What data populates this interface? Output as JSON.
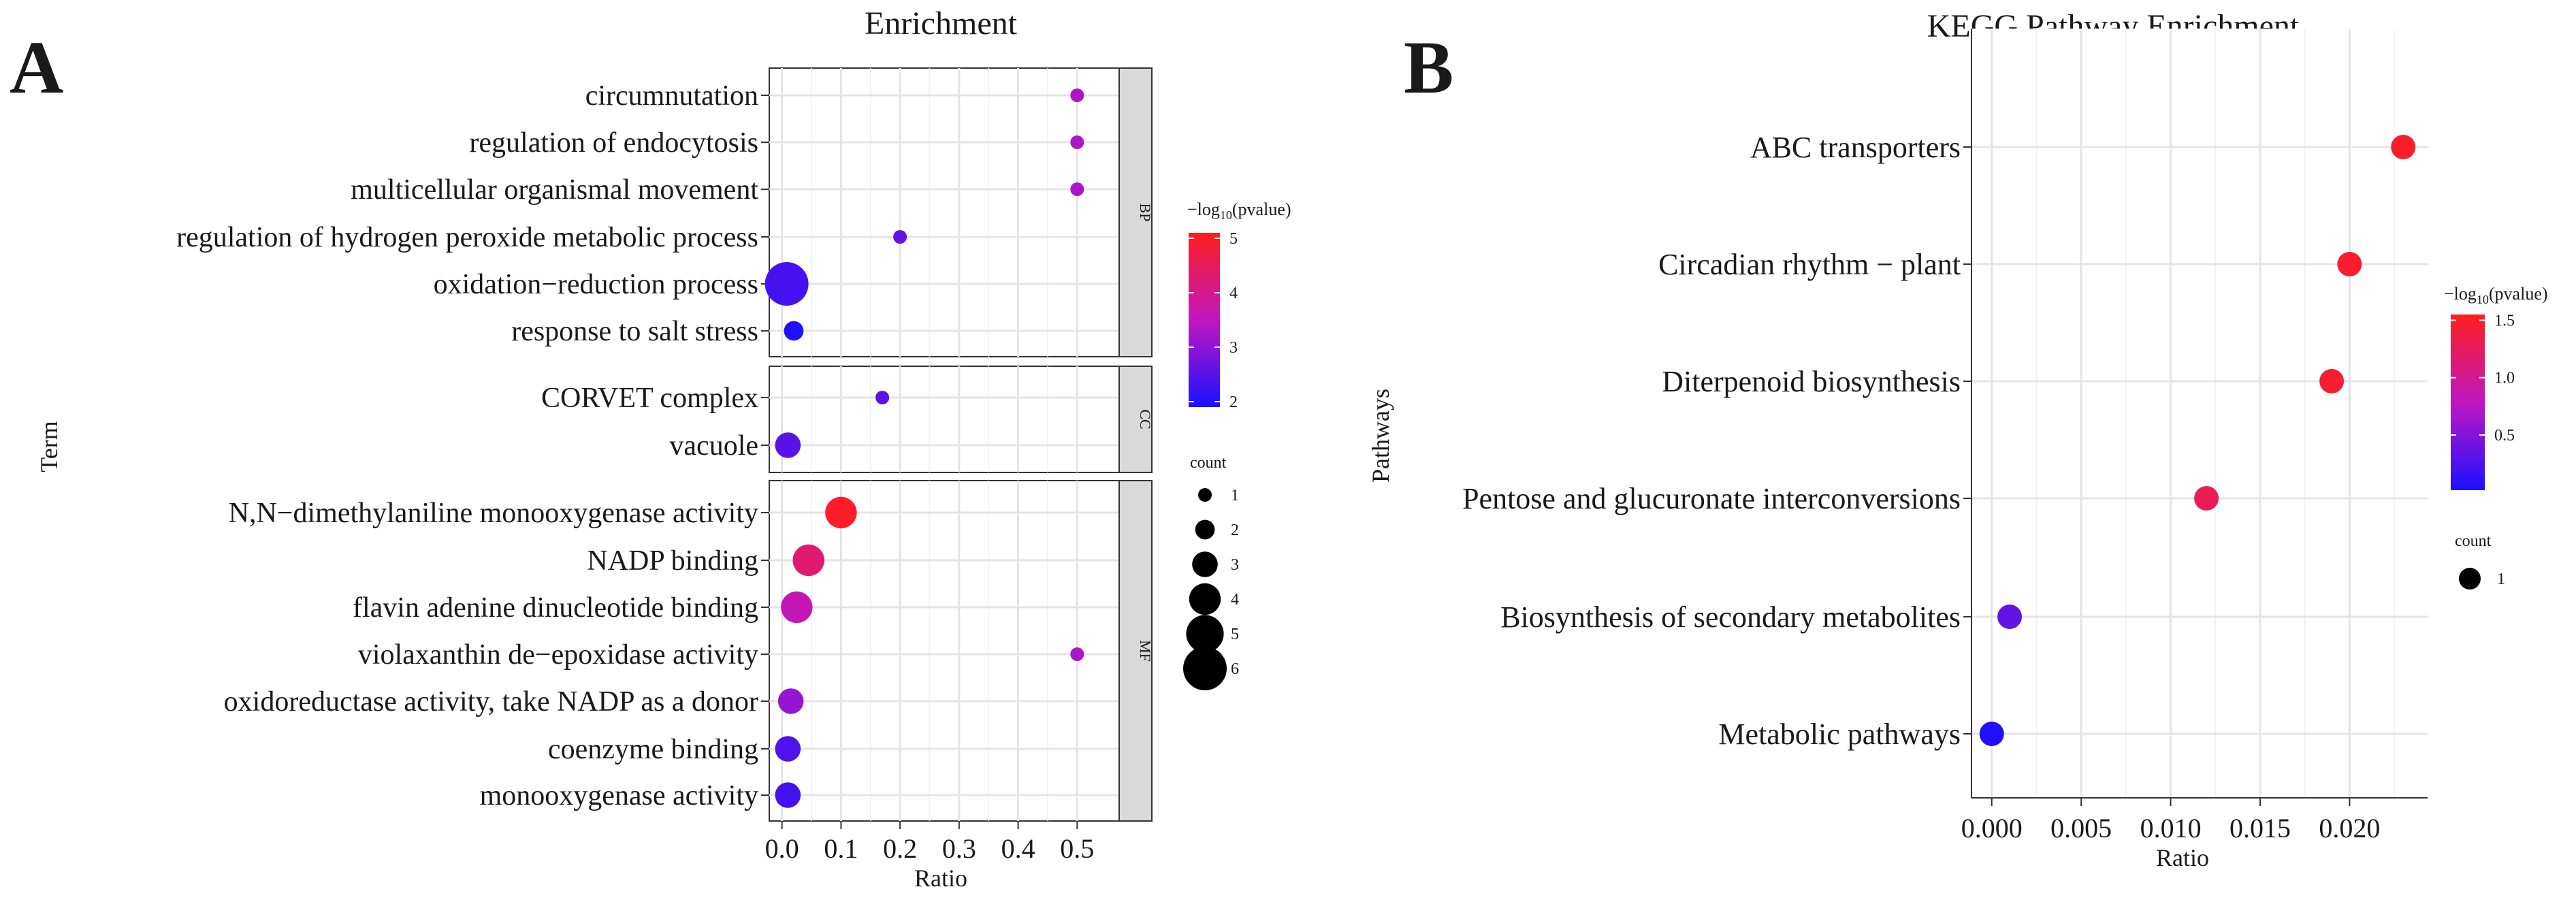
{
  "chart_data": [
    {
      "panel_label": "A",
      "type": "scatter",
      "title": "Enrichment",
      "xlabel": "Ratio",
      "ylabel": "Term",
      "xlim": [
        -0.01,
        0.54
      ],
      "x_ticks": [
        "0.0",
        "0.1",
        "0.2",
        "0.3",
        "0.4",
        "0.5"
      ],
      "x_tick_values": [
        0.0,
        0.1,
        0.2,
        0.3,
        0.4,
        0.5
      ],
      "color_legend": {
        "title_prefix": "−log",
        "title_sub": "10",
        "title_suffix": "(pvalue)",
        "range": [
          1.9,
          5.1
        ],
        "ticks": [
          "5",
          "4",
          "3",
          "2"
        ],
        "tick_values": [
          5,
          4,
          3,
          2
        ],
        "low_color": "#1a10ff",
        "mid_color": "#c117c0",
        "high_color": "#ff1e1e"
      },
      "size_legend": {
        "title": "count",
        "labels": [
          "1",
          "2",
          "3",
          "4",
          "5",
          "6"
        ],
        "values": [
          1,
          2,
          3,
          4,
          5,
          6
        ]
      },
      "facets": [
        {
          "label": "BP",
          "terms": [
            {
              "term": "circumnutation",
              "ratio": 0.5,
              "neglog10p": 3.3,
              "count": 1
            },
            {
              "term": "regulation of endocytosis",
              "ratio": 0.5,
              "neglog10p": 3.3,
              "count": 1
            },
            {
              "term": "multicellular organismal movement",
              "ratio": 0.5,
              "neglog10p": 3.3,
              "count": 1
            },
            {
              "term": "regulation of hydrogen peroxide metabolic process",
              "ratio": 0.2,
              "neglog10p": 2.6,
              "count": 1
            },
            {
              "term": "oxidation−reduction process",
              "ratio": 0.008,
              "neglog10p": 2.3,
              "count": 6
            },
            {
              "term": "response to salt stress",
              "ratio": 0.02,
              "neglog10p": 1.95,
              "count": 2
            }
          ]
        },
        {
          "label": "CC",
          "terms": [
            {
              "term": "CORVET complex",
              "ratio": 0.17,
              "neglog10p": 2.5,
              "count": 1
            },
            {
              "term": "vacuole",
              "ratio": 0.01,
              "neglog10p": 2.5,
              "count": 3
            }
          ]
        },
        {
          "label": "MF",
          "terms": [
            {
              "term": "N,N−dimethylaniline monooxygenase activity",
              "ratio": 0.1,
              "neglog10p": 5.0,
              "count": 4
            },
            {
              "term": "NADP binding",
              "ratio": 0.045,
              "neglog10p": 4.3,
              "count": 4
            },
            {
              "term": "flavin adenine dinucleotide binding",
              "ratio": 0.025,
              "neglog10p": 3.6,
              "count": 4
            },
            {
              "term": "violaxanthin de−epoxidase activity",
              "ratio": 0.5,
              "neglog10p": 3.3,
              "count": 1
            },
            {
              "term": "oxidoreductase activity, take NADP as a donor",
              "ratio": 0.015,
              "neglog10p": 3.1,
              "count": 3
            },
            {
              "term": "coenzyme binding",
              "ratio": 0.01,
              "neglog10p": 2.4,
              "count": 3
            },
            {
              "term": "monooxygenase activity",
              "ratio": 0.01,
              "neglog10p": 2.3,
              "count": 3
            }
          ]
        }
      ]
    },
    {
      "panel_label": "B",
      "type": "scatter",
      "title": "KEGG Pathway Enrichment",
      "xlabel": "Ratio",
      "ylabel": "Pathways",
      "xlim": [
        -0.0006,
        0.0236
      ],
      "x_ticks": [
        "0.000",
        "0.005",
        "0.010",
        "0.015",
        "0.020"
      ],
      "x_tick_values": [
        0.0,
        0.005,
        0.01,
        0.015,
        0.02
      ],
      "color_legend": {
        "title_prefix": "−log",
        "title_sub": "10",
        "title_suffix": "(pvalue)",
        "range": [
          0.02,
          1.55
        ],
        "ticks": [
          "1.5",
          "1.0",
          "0.5"
        ],
        "tick_values": [
          1.5,
          1.0,
          0.5
        ],
        "low_color": "#1a10ff",
        "mid_color": "#c117c0",
        "high_color": "#ff1e1e"
      },
      "size_legend": {
        "title": "count",
        "labels": [
          "1"
        ],
        "values": [
          1
        ]
      },
      "terms": [
        {
          "term": "ABC transporters",
          "ratio": 0.023,
          "neglog10p": 1.5,
          "count": 1
        },
        {
          "term": "Circadian rhythm − plant",
          "ratio": 0.02,
          "neglog10p": 1.48,
          "count": 1
        },
        {
          "term": "Diterpenoid biosynthesis",
          "ratio": 0.019,
          "neglog10p": 1.45,
          "count": 1
        },
        {
          "term": "Pentose and glucuronate interconversions",
          "ratio": 0.012,
          "neglog10p": 1.28,
          "count": 1
        },
        {
          "term": "Biosynthesis of secondary metabolites",
          "ratio": 0.001,
          "neglog10p": 0.35,
          "count": 1
        },
        {
          "term": "Metabolic pathways",
          "ratio": 0.0,
          "neglog10p": 0.05,
          "count": 1
        }
      ]
    }
  ]
}
